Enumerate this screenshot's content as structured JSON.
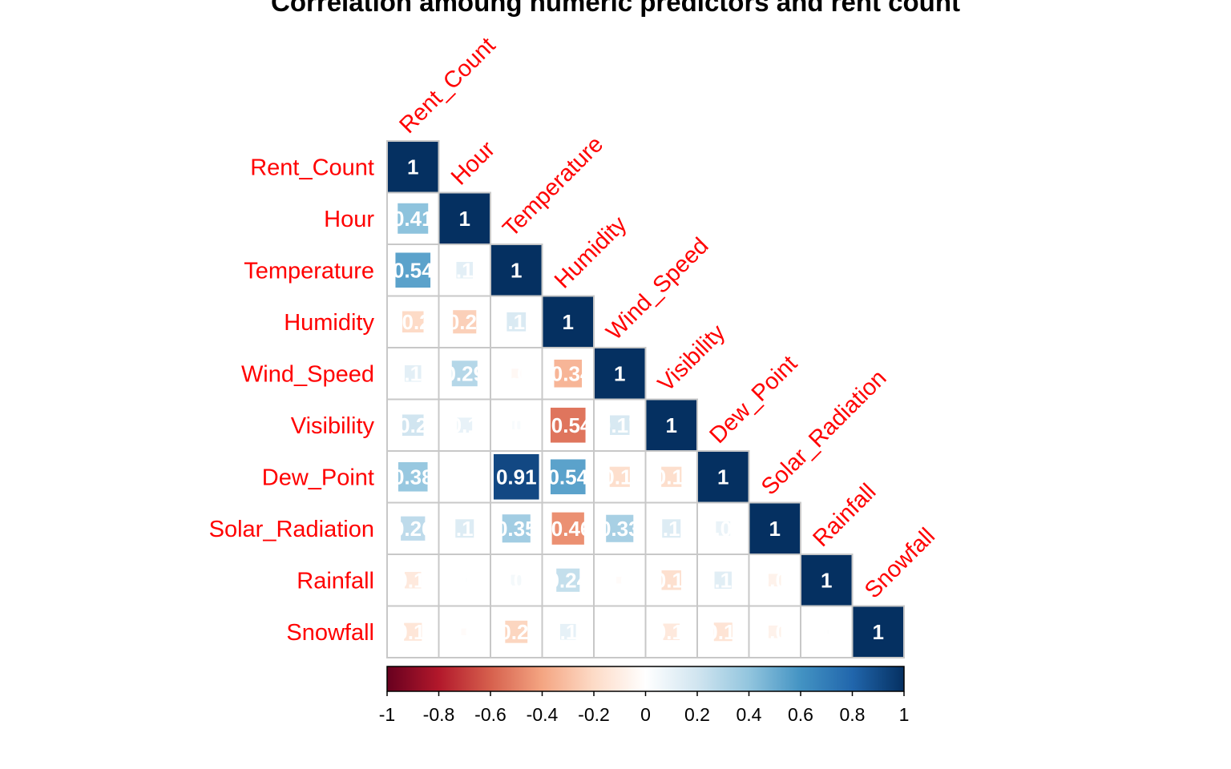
{
  "chart_data": {
    "type": "heatmap",
    "title": "Correlation amoung numeric predictors and rent count",
    "variables": [
      "Rent_Count",
      "Hour",
      "Temperature",
      "Humidity",
      "Wind_Speed",
      "Visibility",
      "Dew_Point",
      "Solar_Radiation",
      "Rainfall",
      "Snowfall"
    ],
    "matrix_shape": "lower-triangular",
    "values": [
      [
        1
      ],
      [
        0.41,
        1
      ],
      [
        0.54,
        0.12,
        1
      ],
      [
        -0.2,
        -0.24,
        0.16,
        1
      ],
      [
        0.12,
        0.29,
        -0.04,
        -0.34,
        1
      ],
      [
        0.2,
        0.1,
        0.03,
        -0.54,
        0.17,
        1
      ],
      [
        0.38,
        0.0,
        0.91,
        0.54,
        -0.18,
        -0.18,
        1
      ],
      [
        0.26,
        0.15,
        0.35,
        -0.46,
        0.33,
        0.15,
        0.09,
        1
      ],
      [
        -0.12,
        0.01,
        0.05,
        0.24,
        -0.02,
        -0.17,
        0.13,
        -0.07,
        1
      ],
      [
        -0.14,
        -0.02,
        -0.22,
        0.11,
        0.0,
        -0.12,
        -0.15,
        -0.07,
        0.01,
        1
      ]
    ],
    "colorbar": {
      "range": [
        -1,
        1
      ],
      "ticks": [
        "-1",
        "-0.8",
        "-0.6",
        "-0.4",
        "-0.2",
        "0",
        "0.2",
        "0.4",
        "0.6",
        "0.8",
        "1"
      ],
      "colors": [
        "#67001f",
        "#b2182b",
        "#d6604d",
        "#f4a582",
        "#fddbc7",
        "#ffffff",
        "#d1e5f0",
        "#92c5de",
        "#4393c3",
        "#2166ac",
        "#053061"
      ]
    },
    "label_color": "#ff0000",
    "grid": true
  }
}
